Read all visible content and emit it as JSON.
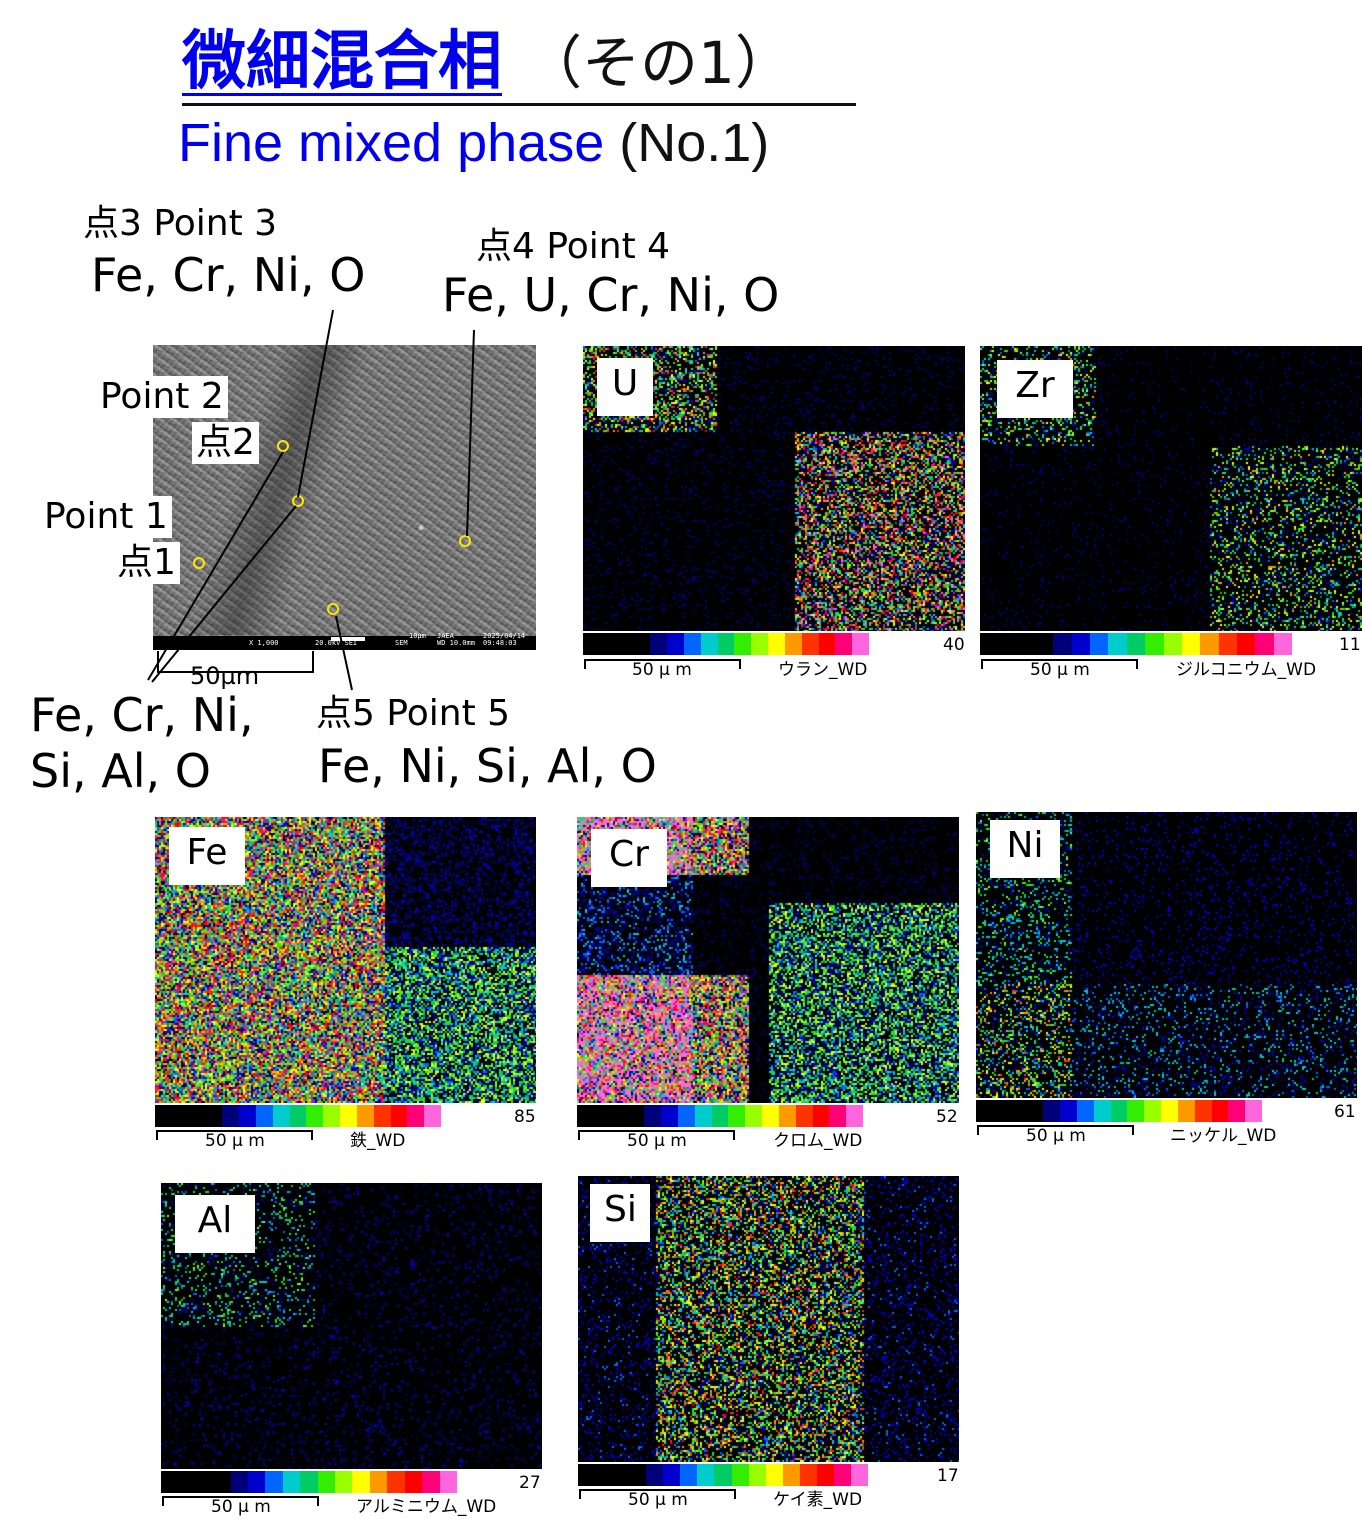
{
  "title": {
    "jp_main": "微細混合相",
    "jp_paren": "（その1）",
    "en_main": "Fine mixed phase",
    "en_num": "(No.1)"
  },
  "points": {
    "p1": {
      "label_en": "Point 1",
      "label_jp": "点1",
      "elements": [
        "Fe, Cr, Ni,",
        "Si, Al, O"
      ]
    },
    "p2": {
      "label_en": "Point 2",
      "label_jp": "点2"
    },
    "p3": {
      "label": "点3 Point 3",
      "elements": "Fe, Cr, Ni, O"
    },
    "p4": {
      "label": "点4 Point 4",
      "elements": "Fe, U, Cr, Ni, O"
    },
    "p5": {
      "label": "点5 Point 5",
      "elements": "Fe, Ni, Si, Al, O"
    }
  },
  "sem": {
    "footer": [
      "X 1,000",
      "20.0kV SEI",
      "SEM",
      "10µm",
      "JAEA",
      "WD 10.0mm",
      "2025/04/14",
      "09:48:03"
    ],
    "scale_label": "50µm"
  },
  "maps": [
    {
      "key": "u",
      "element": "U",
      "max": "40",
      "scale": "50 µ m",
      "name": "ウラン_WD"
    },
    {
      "key": "zr",
      "element": "Zr",
      "max": "11",
      "scale": "50 µ m",
      "name": "ジルコニウム_WD"
    },
    {
      "key": "fe",
      "element": "Fe",
      "max": "85",
      "scale": "50 µ m",
      "name": "鉄_WD"
    },
    {
      "key": "cr",
      "element": "Cr",
      "max": "52",
      "scale": "50 µ m",
      "name": "クロム_WD"
    },
    {
      "key": "ni",
      "element": "Ni",
      "max": "61",
      "scale": "50 µ m",
      "name": "ニッケル_WD"
    },
    {
      "key": "al",
      "element": "Al",
      "max": "27",
      "scale": "50 µ m",
      "name": "アルミニウム_WD"
    },
    {
      "key": "si",
      "element": "Si",
      "max": "17",
      "scale": "50 µ m",
      "name": "ケイ素_WD"
    }
  ],
  "colorscale": [
    "#000000",
    "#000000",
    "#000000",
    "#000000",
    "#00007a",
    "#0000cc",
    "#0066ff",
    "#00cccc",
    "#00cc66",
    "#33ee00",
    "#99ff00",
    "#ffff00",
    "#ff9900",
    "#ff3300",
    "#ff0000",
    "#ff0077",
    "#ff66dd"
  ]
}
